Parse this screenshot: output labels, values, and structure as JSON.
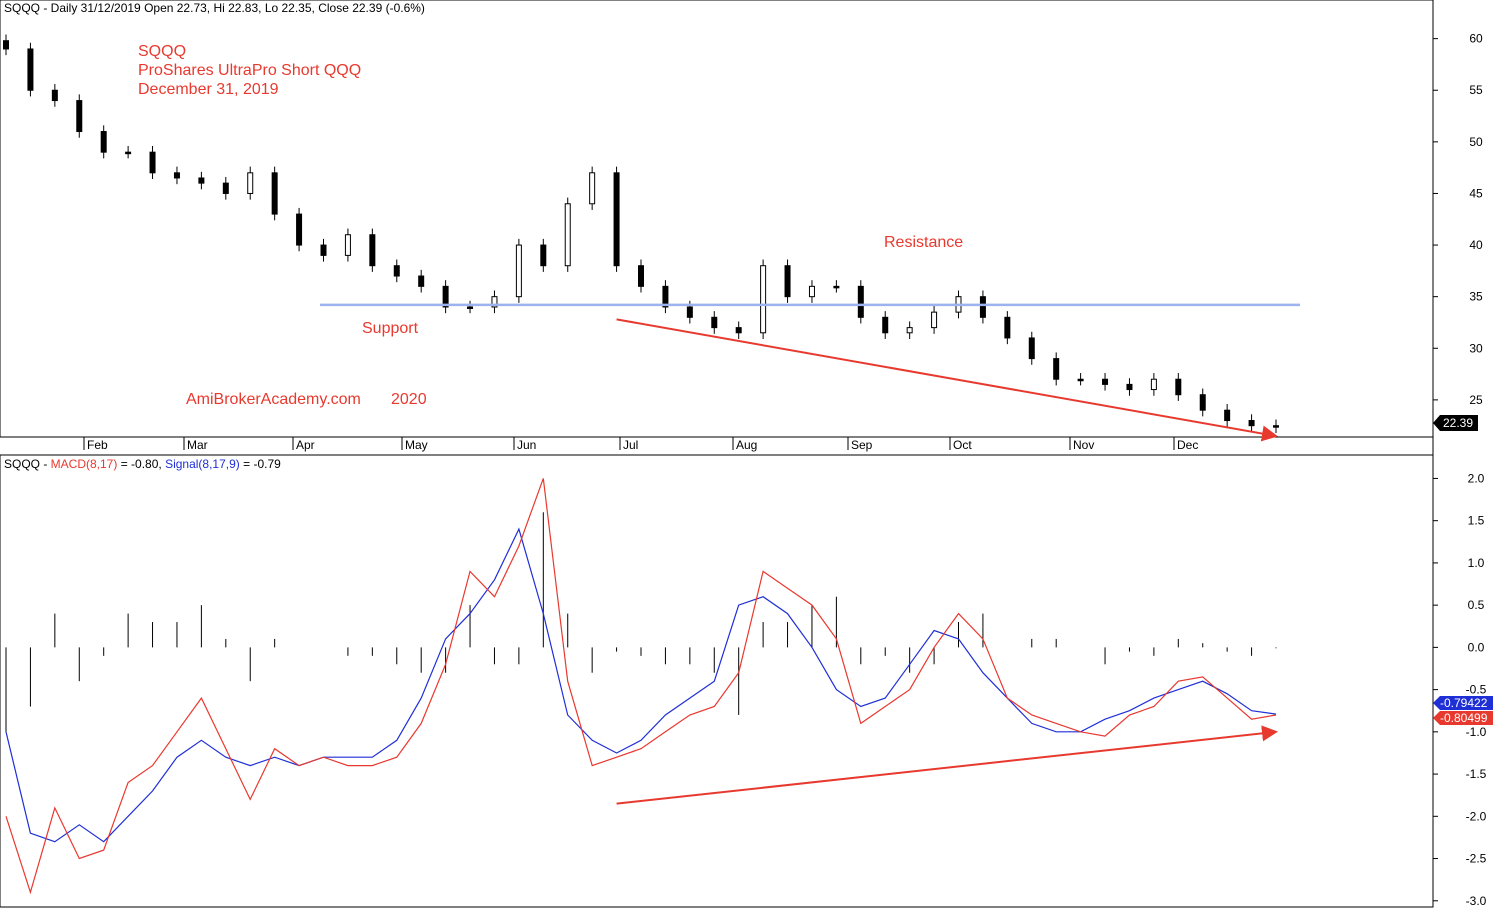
{
  "price_header": "SQQQ - Daily 31/12/2019 Open 22.73, Hi 22.83, Lo 22.35, Close 22.39 (-0.6%)",
  "macd_header": {
    "ticker": "SQQQ - ",
    "macd": "MACD(8,17)",
    "macd_val": " = -0.80, ",
    "signal": "Signal(8,17,9)",
    "signal_val": " = -0.79"
  },
  "annotations": {
    "title": "SQQQ",
    "name": "ProShares UltraPro Short QQQ",
    "date": "December 31, 2019",
    "watermark": "AmiBrokerAcademy.com",
    "year": "2020",
    "support": "Support",
    "resistance": "Resistance"
  },
  "last_close_label": "22.39",
  "signal_label": "-0.79422",
  "macd_label": "-0.80499",
  "colors": {
    "macd": "#e8392f",
    "signal": "#1f2fd6",
    "support_line": "#9db3ee",
    "trend": "#e8392f",
    "candle": "#000000"
  },
  "chart_data": [
    {
      "type": "line",
      "title": "SQQQ - Daily 31/12/2019 Open 22.73, Hi 22.83, Lo 22.35, Close 22.39 (-0.6%)",
      "x_ticks": [
        "Feb",
        "Mar",
        "Apr",
        "May",
        "Jun",
        "Jul",
        "Aug",
        "Sep",
        "Oct",
        "Nov",
        "Dec"
      ],
      "y_ticks": [
        25,
        30,
        35,
        40,
        45,
        50,
        55,
        60
      ],
      "ylim": [
        21.5,
        62
      ],
      "x": [
        "Jan 2",
        "Jan 9",
        "Jan 16",
        "Jan 23",
        "Jan 30",
        "Feb 6",
        "Feb 13",
        "Feb 20",
        "Feb 27",
        "Mar 6",
        "Mar 13",
        "Mar 20",
        "Mar 27",
        "Apr 3",
        "Apr 10",
        "Apr 17",
        "Apr 24",
        "May 1",
        "May 8",
        "May 15",
        "May 22",
        "May 29",
        "Jun 5",
        "Jun 12",
        "Jun 19",
        "Jun 26",
        "Jul 3",
        "Jul 10",
        "Jul 17",
        "Jul 24",
        "Jul 31",
        "Aug 7",
        "Aug 14",
        "Aug 21",
        "Aug 28",
        "Sep 4",
        "Sep 11",
        "Sep 18",
        "Sep 25",
        "Oct 2",
        "Oct 9",
        "Oct 16",
        "Oct 23",
        "Oct 30",
        "Nov 6",
        "Nov 13",
        "Nov 20",
        "Nov 27",
        "Dec 4",
        "Dec 11",
        "Dec 18",
        "Dec 24",
        "Dec 31"
      ],
      "series": [
        {
          "name": "Close",
          "values": [
            59,
            55,
            54,
            51,
            49,
            49,
            47,
            46.5,
            46,
            45,
            47,
            43,
            40,
            39,
            41,
            38,
            37,
            36,
            34,
            34,
            35,
            40,
            38,
            44,
            47,
            38,
            36,
            34,
            33,
            32,
            31.5,
            38,
            35,
            36,
            36,
            33,
            31.5,
            32,
            33.5,
            35,
            33,
            31,
            29,
            27,
            27,
            26.5,
            26,
            27,
            25.5,
            24,
            23,
            22.5,
            22.39
          ]
        }
      ],
      "annotations": [
        "SQQQ",
        "ProShares UltraPro Short QQQ",
        "December 31, 2019",
        "Resistance",
        "Support",
        "AmiBrokerAcademy.com",
        "2020"
      ],
      "support_resistance_level": 34.2,
      "trendline": [
        {
          "x": "Jun 26",
          "y": 32.8
        },
        {
          "x": "Dec 31",
          "y": 21.5
        }
      ],
      "last_value_label": "22.39",
      "grid": false
    },
    {
      "type": "line",
      "title": "SQQQ - MACD(8,17) = -0.80, Signal(8,17,9) = -0.79",
      "y_ticks": [
        -3.0,
        -2.5,
        -2.0,
        -1.5,
        -1.0,
        -0.5,
        0.0,
        0.5,
        1.0,
        1.5,
        2.0
      ],
      "ylim": [
        -3.05,
        2.1
      ],
      "x": [
        "Jan 2",
        "Jan 9",
        "Jan 16",
        "Jan 23",
        "Jan 30",
        "Feb 6",
        "Feb 13",
        "Feb 20",
        "Feb 27",
        "Mar 6",
        "Mar 13",
        "Mar 20",
        "Mar 27",
        "Apr 3",
        "Apr 10",
        "Apr 17",
        "Apr 24",
        "May 1",
        "May 8",
        "May 15",
        "May 22",
        "May 29",
        "Jun 5",
        "Jun 12",
        "Jun 19",
        "Jun 26",
        "Jul 3",
        "Jul 10",
        "Jul 17",
        "Jul 24",
        "Jul 31",
        "Aug 7",
        "Aug 14",
        "Aug 21",
        "Aug 28",
        "Sep 4",
        "Sep 11",
        "Sep 18",
        "Sep 25",
        "Oct 2",
        "Oct 9",
        "Oct 16",
        "Oct 23",
        "Oct 30",
        "Nov 6",
        "Nov 13",
        "Nov 20",
        "Nov 27",
        "Dec 4",
        "Dec 11",
        "Dec 18",
        "Dec 24",
        "Dec 31"
      ],
      "series": [
        {
          "name": "MACD(8,17)",
          "values": [
            -2.0,
            -2.9,
            -1.9,
            -2.5,
            -2.4,
            -1.6,
            -1.4,
            -1.0,
            -0.6,
            -1.2,
            -1.8,
            -1.2,
            -1.4,
            -1.3,
            -1.4,
            -1.4,
            -1.3,
            -0.9,
            -0.2,
            0.9,
            0.6,
            1.2,
            2.0,
            -0.4,
            -1.4,
            -1.3,
            -1.2,
            -1.0,
            -0.8,
            -0.7,
            -0.3,
            0.9,
            0.7,
            0.5,
            0.1,
            -0.9,
            -0.7,
            -0.5,
            0.0,
            0.4,
            0.1,
            -0.6,
            -0.8,
            -0.9,
            -1.0,
            -1.05,
            -0.8,
            -0.7,
            -0.4,
            -0.35,
            -0.6,
            -0.85,
            -0.8
          ]
        },
        {
          "name": "Signal(8,17,9)",
          "values": [
            -1.0,
            -2.2,
            -2.3,
            -2.1,
            -2.3,
            -2.0,
            -1.7,
            -1.3,
            -1.1,
            -1.3,
            -1.4,
            -1.3,
            -1.4,
            -1.3,
            -1.3,
            -1.3,
            -1.1,
            -0.6,
            0.1,
            0.4,
            0.8,
            1.4,
            0.4,
            -0.8,
            -1.1,
            -1.25,
            -1.1,
            -0.8,
            -0.6,
            -0.4,
            0.5,
            0.6,
            0.4,
            0.0,
            -0.5,
            -0.7,
            -0.6,
            -0.2,
            0.2,
            0.1,
            -0.3,
            -0.6,
            -0.9,
            -1.0,
            -1.0,
            -0.85,
            -0.75,
            -0.6,
            -0.5,
            -0.4,
            -0.55,
            -0.75,
            -0.79
          ]
        }
      ],
      "trendline": [
        {
          "x": "Jun 26",
          "y": -1.85
        },
        {
          "x": "Dec 31",
          "y": -1.0
        }
      ],
      "labels": {
        "signal": "-0.79422",
        "macd": "-0.80499"
      },
      "grid": false
    }
  ]
}
